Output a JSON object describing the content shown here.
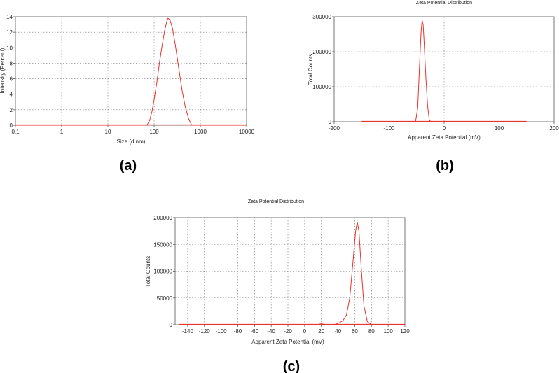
{
  "colors": {
    "curve": "#e8322c",
    "grid": "#777777",
    "frame": "#555555"
  },
  "chart_data": [
    {
      "id": "a",
      "type": "line",
      "panel_label": "(a)",
      "title": "",
      "xlabel": "Size (d.nm)",
      "ylabel": "Intensity (Percent)",
      "x_scale": "log",
      "xlim": [
        0.1,
        10000
      ],
      "ylim": [
        0,
        14
      ],
      "x_ticks": [
        0.1,
        1,
        10,
        100,
        1000,
        10000
      ],
      "x_tick_labels": [
        "0.1",
        "1",
        "10",
        "100",
        "1000",
        "10000"
      ],
      "y_ticks": [
        0,
        2,
        4,
        6,
        8,
        10,
        12,
        14
      ],
      "y_tick_labels": [
        "0",
        "2",
        "4",
        "6",
        "8",
        "10",
        "12",
        "14"
      ],
      "grid": true,
      "baseline": [
        0.1,
        10000
      ],
      "series": [
        {
          "x": [
            0.1,
            70,
            80,
            90,
            100,
            115,
            130,
            150,
            170,
            190,
            200,
            220,
            250,
            290,
            340,
            400,
            470,
            560,
            650,
            10000
          ],
          "y": [
            0,
            0,
            0.6,
            1.8,
            3.3,
            5.6,
            8.0,
            10.4,
            12.3,
            13.5,
            13.8,
            13.6,
            12.5,
            10.2,
            7.4,
            4.6,
            2.4,
            0.8,
            0,
            0
          ]
        }
      ]
    },
    {
      "id": "b",
      "type": "line",
      "panel_label": "(b)",
      "title": "Zeta Potential Distribution",
      "xlabel": "Apparent Zeta Potential (mV)",
      "ylabel": "Total Counts",
      "x_scale": "linear",
      "xlim": [
        -200,
        200
      ],
      "ylim": [
        0,
        300000
      ],
      "x_ticks": [
        -200,
        -100,
        0,
        100,
        200
      ],
      "x_tick_labels": [
        "-200",
        "-100",
        "0",
        "100",
        "200"
      ],
      "y_ticks": [
        0,
        100000,
        200000,
        300000
      ],
      "y_tick_labels": [
        "0",
        "100000",
        "200000",
        "300000"
      ],
      "grid": true,
      "baseline": [
        -150,
        150
      ],
      "series": [
        {
          "x": [
            -150,
            -52,
            -48,
            -45,
            -42,
            -40,
            -38,
            -36,
            -33,
            -30,
            -27,
            -24,
            150
          ],
          "y": [
            0,
            0,
            40000,
            150000,
            255000,
            290000,
            275000,
            215000,
            120000,
            45000,
            5000,
            0,
            0
          ]
        }
      ]
    },
    {
      "id": "c",
      "type": "line",
      "panel_label": "(c)",
      "title": "Zeta Potential Distribution",
      "xlabel": "Apparent Zeta Potential (mV)",
      "ylabel": "Total Counts",
      "x_scale": "linear",
      "xlim": [
        -155,
        120
      ],
      "ylim": [
        0,
        200000
      ],
      "x_ticks": [
        -140,
        -120,
        -100,
        -80,
        -60,
        -40,
        -20,
        0,
        20,
        40,
        60,
        80,
        100,
        120
      ],
      "x_tick_labels": [
        "-140",
        "-120",
        "-100",
        "-80",
        "-60",
        "-40",
        "-20",
        "0",
        "20",
        "40",
        "60",
        "80",
        "100",
        "120"
      ],
      "y_ticks": [
        0,
        50000,
        100000,
        150000,
        200000
      ],
      "y_tick_labels": [
        "0",
        "50000",
        "100000",
        "150000",
        "200000"
      ],
      "grid": true,
      "baseline": [
        -150,
        120
      ],
      "series": [
        {
          "x": [
            -150,
            15,
            20,
            25,
            30,
            35,
            38,
            42,
            46,
            50,
            54,
            58,
            61,
            63,
            65,
            68,
            71,
            75,
            80,
            120
          ],
          "y": [
            0,
            0,
            2000,
            0,
            0,
            0,
            1500,
            4000,
            8000,
            18000,
            50000,
            120000,
            175000,
            192000,
            175000,
            100000,
            35000,
            6000,
            0,
            0
          ]
        }
      ]
    }
  ]
}
